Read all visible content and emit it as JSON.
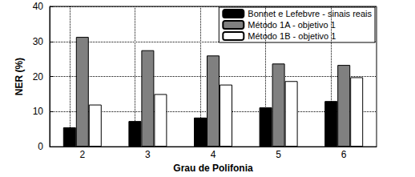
{
  "chart_data": {
    "type": "bar",
    "x_label": "Grau de Polifonia",
    "y_label": "NER (%)",
    "categories": [
      "2",
      "3",
      "4",
      "5",
      "6"
    ],
    "series": [
      {
        "name": "Bonnet e Lefebvre - sinais reais",
        "color": "#000000",
        "values": [
          5.5,
          7.3,
          8.3,
          11.2,
          13.0
        ]
      },
      {
        "name": "Método 1A - objetivo 1",
        "color": "#808080",
        "values": [
          31.3,
          27.5,
          26.0,
          23.7,
          23.3
        ]
      },
      {
        "name": "Método 1B - objetivo 1",
        "color": "#ffffff",
        "values": [
          12.0,
          15.0,
          17.7,
          18.7,
          19.8
        ]
      }
    ],
    "ylim": [
      0,
      40
    ],
    "yticks": [
      0,
      10,
      20,
      30,
      40
    ],
    "grid": true,
    "legend": "upper right"
  }
}
